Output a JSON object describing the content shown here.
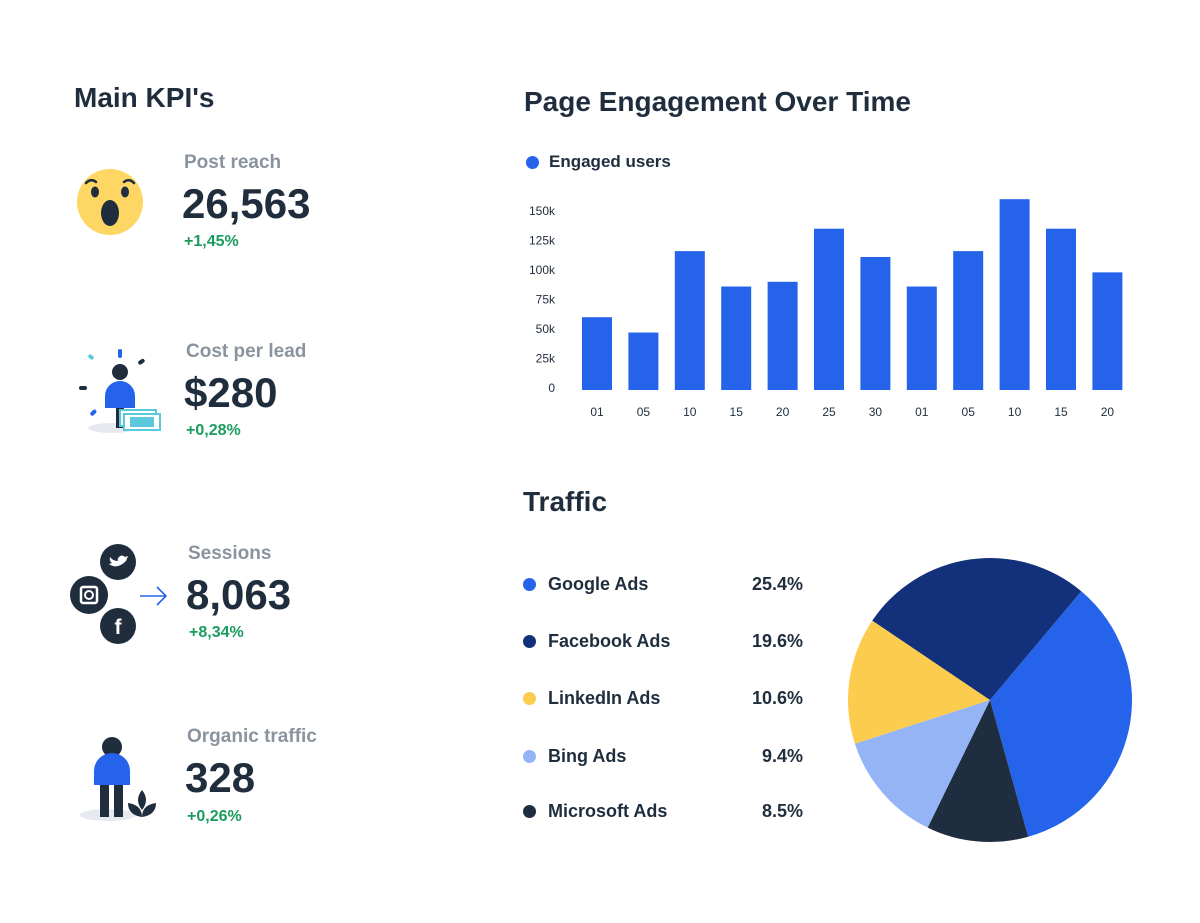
{
  "kpis": {
    "title": "Main KPI's",
    "items": [
      {
        "label": "Post reach",
        "value": "26,563",
        "delta": "+1,45%",
        "icon": "surprised-emoji-icon"
      },
      {
        "label": "Cost per lead",
        "value": "$280",
        "delta": "+0,28%",
        "icon": "person-money-icon"
      },
      {
        "label": "Sessions",
        "value": "8,063",
        "delta": "+8,34%",
        "icon": "social-networks-icon"
      },
      {
        "label": "Organic traffic",
        "value": "328",
        "delta": "+0,26%",
        "icon": "person-plant-icon"
      }
    ]
  },
  "colors": {
    "text": "#1f2d3d",
    "muted": "#8a939e",
    "positive": "#1a9c5e",
    "bar": "#2563eb"
  },
  "chart_data": [
    {
      "type": "bar",
      "title": "Page Engagement Over Time",
      "legend": "top-left",
      "grid": false,
      "categories": [
        "01",
        "05",
        "10",
        "15",
        "20",
        "25",
        "30",
        "01",
        "05",
        "10",
        "15",
        "20"
      ],
      "series": [
        {
          "name": "Engaged users",
          "color": "#2563eb",
          "values": [
            60000,
            47000,
            116000,
            86000,
            90000,
            135000,
            111000,
            86000,
            116000,
            160000,
            135000,
            98000
          ]
        }
      ],
      "ylim": [
        0,
        150000
      ],
      "yticks": [
        "0",
        "25k",
        "50k",
        "75k",
        "100k",
        "125k",
        "150k"
      ]
    },
    {
      "type": "pie",
      "title": "Traffic",
      "legend": "left",
      "slices": [
        {
          "label": "Google Ads",
          "value": 25.4,
          "display": "25.4%",
          "color": "#2563eb"
        },
        {
          "label": "Facebook Ads",
          "value": 19.6,
          "display": "19.6%",
          "color": "#13317a"
        },
        {
          "label": "LinkedIn Ads",
          "value": 10.6,
          "display": "10.6%",
          "color": "#fccc4f"
        },
        {
          "label": "Bing Ads",
          "value": 9.4,
          "display": "9.4%",
          "color": "#94b4f5"
        },
        {
          "label": "Microsoft Ads",
          "value": 8.5,
          "display": "8.5%",
          "color": "#1e2d40"
        }
      ]
    }
  ]
}
